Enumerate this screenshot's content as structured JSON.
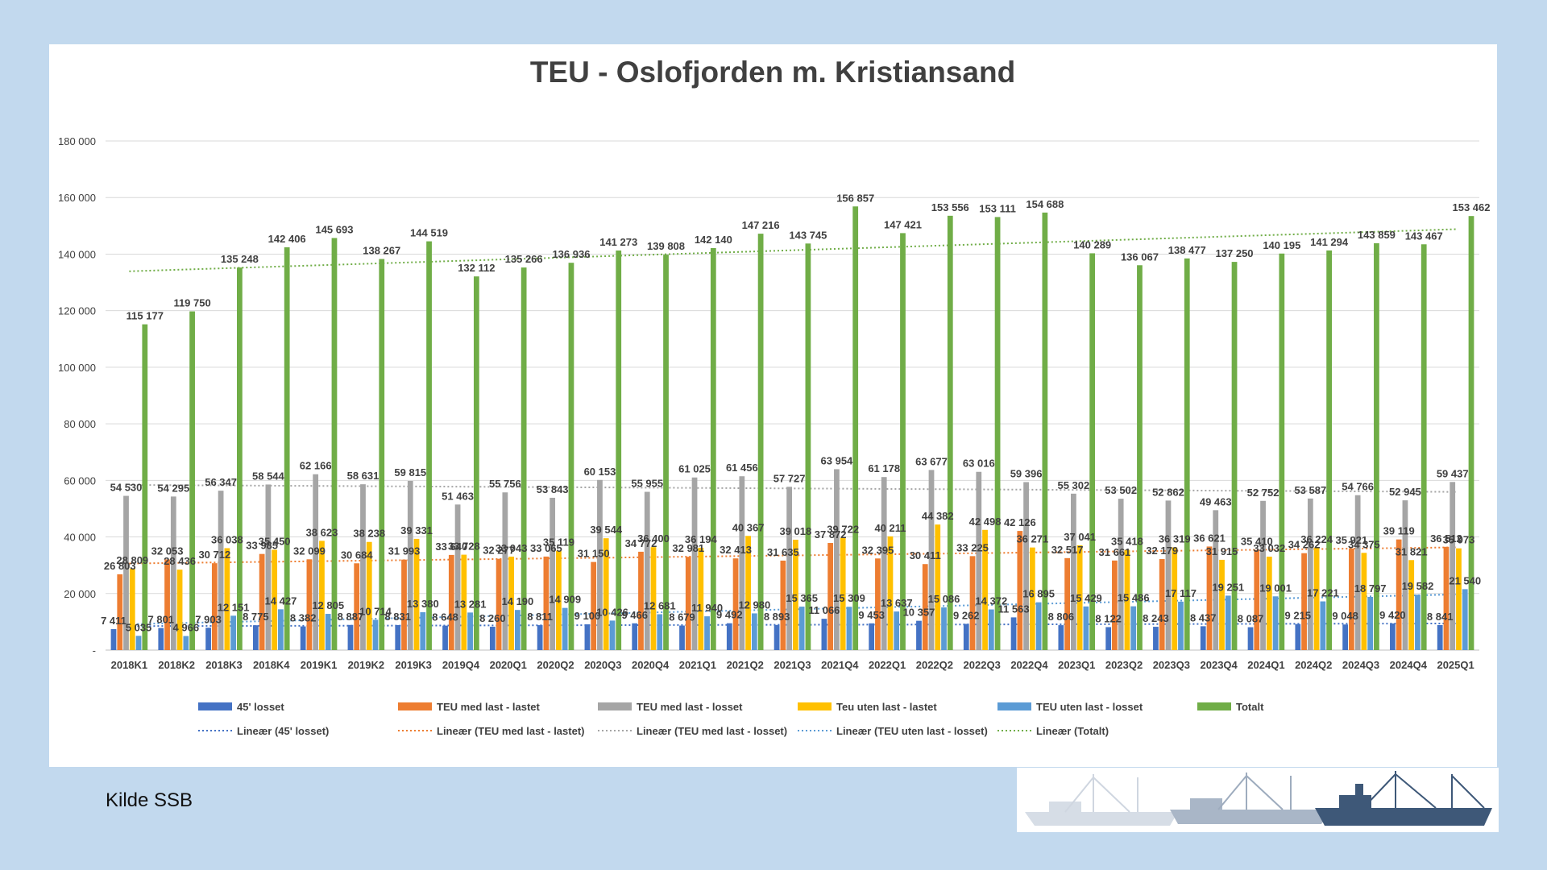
{
  "chart_data": {
    "type": "bar",
    "title": "TEU - Oslofjorden m. Kristiansand",
    "yticks": [
      "180 000",
      "160 000",
      "140 000",
      "120 000",
      "100 000",
      "80 000",
      "60 000",
      "40 000",
      "20 000",
      "-"
    ],
    "ylim": [
      0,
      180000
    ],
    "grid": true,
    "legend_position": "bottom",
    "categories": [
      "2018K1",
      "2018K2",
      "2018K3",
      "2018K4",
      "2019K1",
      "2019K2",
      "2019K3",
      "2019Q4",
      "2020Q1",
      "2020Q2",
      "2020Q3",
      "2020Q4",
      "2021Q1",
      "2021Q2",
      "2021Q3",
      "2021Q4",
      "2022Q1",
      "2022Q2",
      "2022Q3",
      "2022Q4",
      "2023Q1",
      "2023Q2",
      "2023Q3",
      "2023Q4",
      "2024Q1",
      "2024Q2",
      "2024Q3",
      "2024Q4",
      "2025Q1"
    ],
    "series": [
      {
        "name": "45' losset",
        "color": "#4472c4",
        "values": [
          7411,
          7801,
          7903,
          8775,
          8382,
          8887,
          8831,
          8648,
          8260,
          8811,
          9100,
          9466,
          8679,
          9492,
          8893,
          11066,
          9453,
          10357,
          9262,
          11563,
          8806,
          8122,
          8243,
          8437,
          8087,
          9215,
          9048,
          9420,
          8841
        ]
      },
      {
        "name": "TEU med last - lastet",
        "color": "#ed7d31",
        "values": [
          26803,
          32053,
          30712,
          33985,
          32099,
          30684,
          31993,
          33640,
          32277,
          33065,
          31150,
          34772,
          32981,
          32413,
          31635,
          37872,
          32395,
          30411,
          33225,
          42126,
          32517,
          31661,
          32179,
          36621,
          35410,
          34262,
          35921,
          39119,
          36512
        ]
      },
      {
        "name": "TEU med last - losset",
        "color": "#a5a5a5",
        "values": [
          54530,
          54295,
          56347,
          58544,
          62166,
          58631,
          59815,
          51463,
          55756,
          53843,
          60153,
          55955,
          61025,
          61456,
          57727,
          63954,
          61178,
          63677,
          63016,
          59396,
          55302,
          53502,
          52862,
          49463,
          52752,
          53587,
          54766,
          52945,
          59437
        ]
      },
      {
        "name": "Teu uten last - lastet",
        "color": "#ffc000",
        "values": [
          28809,
          28436,
          36038,
          35450,
          38623,
          38238,
          39331,
          33728,
          33043,
          35119,
          39544,
          36400,
          36194,
          40367,
          39018,
          39722,
          40211,
          44382,
          42498,
          36271,
          37041,
          35418,
          36319,
          31915,
          33032,
          36224,
          34375,
          31821,
          35973
        ]
      },
      {
        "name": "TEU uten last - losset",
        "color": "#5b9bd5",
        "values": [
          5035,
          4966,
          12151,
          14427,
          12805,
          10714,
          13380,
          13281,
          14190,
          14909,
          10426,
          12681,
          11940,
          12980,
          15365,
          15309,
          13637,
          15086,
          14372,
          16895,
          15429,
          15486,
          17117,
          19251,
          19001,
          17221,
          18797,
          19582,
          21540
        ]
      },
      {
        "name": "Totalt",
        "color": "#70ad47",
        "values": [
          115177,
          119750,
          135248,
          142406,
          145693,
          138267,
          144519,
          132112,
          135266,
          136936,
          141273,
          139808,
          142140,
          147216,
          143745,
          156857,
          147421,
          153556,
          153111,
          154688,
          140289,
          136067,
          138477,
          137250,
          140195,
          141294,
          143859,
          143467,
          153462
        ]
      }
    ],
    "value_labels": [
      [
        "7 411",
        "7 801",
        "7 903",
        "8 775",
        "8 382",
        "8 887",
        "8 831",
        "8 648",
        "8 260",
        "8 811",
        "9 100",
        "9 466",
        "8 679",
        "9 492",
        "8 893",
        "11 066",
        "9 453",
        "10 357",
        "9 262",
        "11 563",
        "8 806",
        "8 122",
        "8 243",
        "8 437",
        "8 087",
        "9 215",
        "9 048",
        "9 420",
        "8 841"
      ],
      [
        "26 803",
        "32 053",
        "30 712",
        "33 985",
        "32 099",
        "30 684",
        "31 993",
        "33 640",
        "32 277",
        "33 065",
        "31 150",
        "34 772",
        "32 981",
        "32 413",
        "31 635",
        "37 872",
        "32 395",
        "30 411",
        "33 225",
        "42 126",
        "32 517",
        "31 661",
        "32 179",
        "36 621",
        "35 410",
        "34 262",
        "35 921",
        "39 119",
        "36 512"
      ],
      [
        "54 530",
        "54 295",
        "56 347",
        "58 544",
        "62 166",
        "58 631",
        "59 815",
        "51 463",
        "55 756",
        "53 843",
        "60 153",
        "55 955",
        "61 025",
        "61 456",
        "57 727",
        "63 954",
        "61 178",
        "63 677",
        "63 016",
        "59 396",
        "55 302",
        "53 502",
        "52 862",
        "49 463",
        "52 752",
        "53 587",
        "54 766",
        "52 945",
        "59 437"
      ],
      [
        "28 809",
        "28 436",
        "36 038",
        "35 450",
        "38 623",
        "38 238",
        "39 331",
        "33 728",
        "33 043",
        "35 119",
        "39 544",
        "36 400",
        "36 194",
        "40 367",
        "39 018",
        "39 722",
        "40 211",
        "44 382",
        "42 498",
        "36 271",
        "37 041",
        "35 418",
        "36 319",
        "31 915",
        "33 032",
        "36 224",
        "34 375",
        "31 821",
        "35 973"
      ],
      [
        "5 035",
        "4 966",
        "12 151",
        "14 427",
        "12 805",
        "10 714",
        "13 380",
        "13 281",
        "14 190",
        "14 909",
        "10 426",
        "12 681",
        "11 940",
        "12 980",
        "15 365",
        "15 309",
        "13 637",
        "15 086",
        "14 372",
        "16 895",
        "15 429",
        "15 486",
        "17 117",
        "19 251",
        "19 001",
        "17 221",
        "18 797",
        "19 582",
        "21 540"
      ],
      [
        "115 177",
        "119 750",
        "135 248",
        "142 406",
        "145 693",
        "138 267",
        "144 519",
        "132 112",
        "135 266",
        "136 936",
        "141 273",
        "139 808",
        "142 140",
        "147 216",
        "143 745",
        "156 857",
        "147 421",
        "153 556",
        "153 111",
        "154 688",
        "140 289",
        "136 067",
        "138 477",
        "137 250",
        "140 195",
        "141 294",
        "143 859",
        "143 467",
        "153 462"
      ]
    ],
    "trendlines": [
      {
        "name": "Lineær (45' losset)",
        "color": "#4472c4"
      },
      {
        "name": "Lineær (TEU med last - lastet)",
        "color": "#ed7d31"
      },
      {
        "name": "Lineær (TEU med last - losset)",
        "color": "#a5a5a5"
      },
      {
        "name": "Lineær (TEU uten last - losset)",
        "color": "#5b9bd5"
      },
      {
        "name": "Lineær (Totalt)",
        "color": "#70ad47"
      }
    ]
  },
  "source_note": "Kilde SSB",
  "colors": {
    "background": "#c2d9ee",
    "panel": "#ffffff",
    "gridline": "#d9d9d9",
    "text": "#404040"
  }
}
